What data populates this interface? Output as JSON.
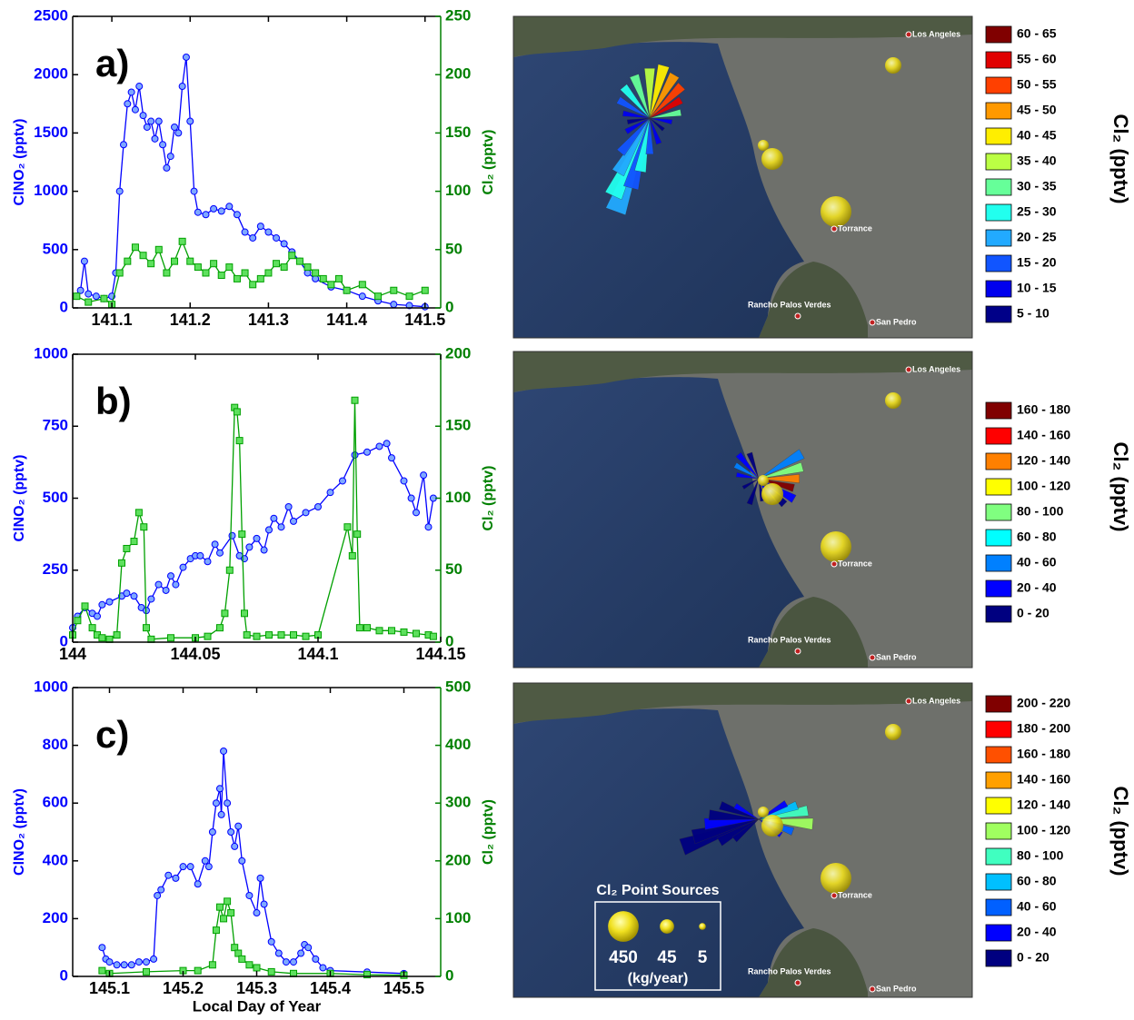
{
  "chart_data": [
    {
      "type": "line",
      "panel_label": "a)",
      "ylabel": "ClNO₂ (pptv)",
      "y2label": "Cl₂ (pptv)",
      "xlim": [
        141.05,
        141.52
      ],
      "xticks": [
        141.1,
        141.2,
        141.3,
        141.4,
        141.5
      ],
      "ylim": [
        0,
        2500
      ],
      "yticks": [
        0,
        500,
        1000,
        1500,
        2000,
        2500
      ],
      "y2lim": [
        0,
        250
      ],
      "y2ticks": [
        0,
        50,
        100,
        150,
        200,
        250
      ],
      "series": [
        {
          "color": "#0000ff",
          "marker": "circle",
          "x": [
            141.055,
            141.06,
            141.065,
            141.07,
            141.08,
            141.09,
            141.1,
            141.105,
            141.11,
            141.115,
            141.12,
            141.125,
            141.13,
            141.135,
            141.14,
            141.145,
            141.15,
            141.155,
            141.16,
            141.165,
            141.17,
            141.175,
            141.18,
            141.185,
            141.19,
            141.195,
            141.2,
            141.205,
            141.21,
            141.22,
            141.23,
            141.24,
            141.25,
            141.26,
            141.27,
            141.28,
            141.29,
            141.3,
            141.31,
            141.32,
            141.33,
            141.34,
            141.35,
            141.36,
            141.38,
            141.4,
            141.42,
            141.44,
            141.46,
            141.48,
            141.5
          ],
          "values": [
            100,
            150,
            400,
            120,
            100,
            80,
            100,
            300,
            1000,
            1400,
            1750,
            1850,
            1700,
            1900,
            1650,
            1550,
            1600,
            1450,
            1600,
            1400,
            1200,
            1300,
            1550,
            1500,
            1900,
            2150,
            1600,
            1000,
            820,
            800,
            850,
            830,
            870,
            800,
            650,
            600,
            700,
            650,
            600,
            550,
            480,
            400,
            300,
            250,
            180,
            150,
            100,
            60,
            30,
            20,
            10
          ]
        },
        {
          "color": "#00a000",
          "marker": "square",
          "axis": "y2",
          "x": [
            141.055,
            141.07,
            141.09,
            141.1,
            141.11,
            141.12,
            141.13,
            141.14,
            141.15,
            141.16,
            141.17,
            141.18,
            141.19,
            141.2,
            141.21,
            141.22,
            141.23,
            141.24,
            141.25,
            141.26,
            141.27,
            141.28,
            141.29,
            141.3,
            141.31,
            141.32,
            141.33,
            141.34,
            141.35,
            141.36,
            141.37,
            141.38,
            141.39,
            141.4,
            141.42,
            141.44,
            141.46,
            141.48,
            141.5
          ],
          "values": [
            10,
            5,
            8,
            3,
            30,
            40,
            52,
            45,
            38,
            50,
            30,
            40,
            57,
            40,
            35,
            30,
            38,
            28,
            35,
            25,
            30,
            20,
            25,
            30,
            38,
            35,
            45,
            40,
            35,
            30,
            25,
            20,
            25,
            15,
            20,
            10,
            15,
            10,
            15
          ]
        }
      ]
    },
    {
      "type": "line",
      "panel_label": "b)",
      "ylabel": "ClNO₂ (pptv)",
      "y2label": "Cl₂ (pptv)",
      "xlim": [
        144,
        144.15
      ],
      "xticks": [
        144,
        144.05,
        144.1,
        144.15
      ],
      "ylim": [
        0,
        1000
      ],
      "yticks": [
        0,
        250,
        500,
        750,
        1000
      ],
      "y2lim": [
        0,
        200
      ],
      "y2ticks": [
        0,
        50,
        100,
        150,
        200
      ],
      "series": [
        {
          "color": "#0000ff",
          "marker": "circle",
          "x": [
            144,
            144.002,
            144.005,
            144.008,
            144.01,
            144.012,
            144.015,
            144.02,
            144.022,
            144.025,
            144.028,
            144.03,
            144.032,
            144.035,
            144.038,
            144.04,
            144.042,
            144.045,
            144.048,
            144.05,
            144.052,
            144.055,
            144.058,
            144.06,
            144.065,
            144.068,
            144.07,
            144.072,
            144.075,
            144.078,
            144.08,
            144.082,
            144.085,
            144.088,
            144.09,
            144.095,
            144.1,
            144.105,
            144.11,
            144.115,
            144.12,
            144.125,
            144.128,
            144.13,
            144.135,
            144.138,
            144.14,
            144.143,
            144.145,
            144.147
          ],
          "values": [
            50,
            90,
            120,
            100,
            90,
            130,
            140,
            160,
            170,
            160,
            120,
            110,
            150,
            200,
            180,
            230,
            200,
            260,
            290,
            300,
            300,
            280,
            340,
            310,
            370,
            300,
            290,
            330,
            360,
            320,
            390,
            430,
            400,
            470,
            420,
            450,
            470,
            520,
            560,
            650,
            660,
            680,
            690,
            640,
            560,
            500,
            450,
            580,
            400,
            500
          ]
        },
        {
          "color": "#00a000",
          "marker": "square",
          "axis": "y2",
          "x": [
            144,
            144.002,
            144.005,
            144.008,
            144.01,
            144.012,
            144.015,
            144.018,
            144.02,
            144.022,
            144.025,
            144.027,
            144.029,
            144.03,
            144.032,
            144.04,
            144.05,
            144.055,
            144.06,
            144.062,
            144.064,
            144.066,
            144.067,
            144.068,
            144.069,
            144.07,
            144.071,
            144.075,
            144.08,
            144.085,
            144.09,
            144.095,
            144.1,
            144.112,
            144.114,
            144.115,
            144.116,
            144.117,
            144.12,
            144.125,
            144.13,
            144.135,
            144.14,
            144.145,
            144.147
          ],
          "values": [
            5,
            15,
            25,
            10,
            5,
            3,
            2,
            5,
            55,
            65,
            70,
            90,
            80,
            10,
            2,
            3,
            3,
            4,
            10,
            20,
            50,
            163,
            160,
            140,
            75,
            20,
            5,
            4,
            5,
            5,
            5,
            4,
            5,
            80,
            60,
            168,
            75,
            10,
            10,
            8,
            8,
            7,
            6,
            5,
            4
          ]
        }
      ]
    },
    {
      "type": "line",
      "panel_label": "c)",
      "ylabel": "ClNO₂ (pptv)",
      "y2label": "Cl₂ (pptv)",
      "xlabel": "Local Day of Year",
      "xlim": [
        145.05,
        145.55
      ],
      "xticks": [
        145.1,
        145.2,
        145.3,
        145.4,
        145.5
      ],
      "ylim": [
        0,
        1000
      ],
      "yticks": [
        0,
        200,
        400,
        600,
        800,
        1000
      ],
      "y2lim": [
        0,
        500
      ],
      "y2ticks": [
        0,
        100,
        200,
        300,
        400,
        500
      ],
      "series": [
        {
          "color": "#0000ff",
          "marker": "circle",
          "x": [
            145.09,
            145.095,
            145.1,
            145.11,
            145.12,
            145.13,
            145.14,
            145.15,
            145.16,
            145.165,
            145.17,
            145.18,
            145.19,
            145.2,
            145.21,
            145.22,
            145.23,
            145.235,
            145.24,
            145.245,
            145.25,
            145.252,
            145.255,
            145.26,
            145.265,
            145.27,
            145.275,
            145.28,
            145.29,
            145.3,
            145.305,
            145.31,
            145.32,
            145.33,
            145.34,
            145.35,
            145.36,
            145.365,
            145.37,
            145.38,
            145.39,
            145.4,
            145.45,
            145.5
          ],
          "values": [
            100,
            60,
            50,
            40,
            40,
            40,
            50,
            50,
            60,
            280,
            300,
            350,
            340,
            380,
            380,
            320,
            400,
            380,
            500,
            600,
            650,
            560,
            780,
            600,
            500,
            450,
            520,
            400,
            280,
            220,
            340,
            250,
            120,
            80,
            50,
            50,
            80,
            110,
            100,
            60,
            30,
            20,
            15,
            10
          ]
        },
        {
          "color": "#00a000",
          "marker": "square",
          "axis": "y2",
          "x": [
            145.09,
            145.1,
            145.15,
            145.2,
            145.22,
            145.24,
            145.245,
            145.25,
            145.255,
            145.26,
            145.265,
            145.27,
            145.275,
            145.28,
            145.29,
            145.3,
            145.32,
            145.35,
            145.4,
            145.45,
            145.5
          ],
          "values": [
            10,
            5,
            8,
            10,
            10,
            20,
            80,
            120,
            100,
            130,
            110,
            50,
            40,
            30,
            20,
            15,
            8,
            5,
            5,
            3,
            2
          ]
        }
      ]
    }
  ],
  "places": [
    "Los Angeles",
    "Torrance",
    "Rancho Palos Verdes",
    "San Pedro"
  ],
  "maps": [
    {
      "legend_title": "Cl₂ (pptv)",
      "bins": [
        {
          "label": "60 - 65",
          "color": "#800000"
        },
        {
          "label": "55 - 60",
          "color": "#e00000"
        },
        {
          "label": "50 - 55",
          "color": "#ff4000"
        },
        {
          "label": "45 - 50",
          "color": "#ff9900"
        },
        {
          "label": "40 - 45",
          "color": "#ffee00"
        },
        {
          "label": "35 - 40",
          "color": "#bbff44"
        },
        {
          "label": "30 - 35",
          "color": "#66ff99"
        },
        {
          "label": "25 - 30",
          "color": "#22ffee"
        },
        {
          "label": "20 - 25",
          "color": "#22aaff"
        },
        {
          "label": "15 - 20",
          "color": "#1155ff"
        },
        {
          "label": "10 - 15",
          "color": "#0000ee"
        },
        {
          "label": "5 - 10",
          "color": "#000088"
        }
      ]
    },
    {
      "legend_title": "Cl₂ (pptv)",
      "bins": [
        {
          "label": "160 - 180",
          "color": "#800000"
        },
        {
          "label": "140 - 160",
          "color": "#ff0000"
        },
        {
          "label": "120 - 140",
          "color": "#ff8000"
        },
        {
          "label": "100 - 120",
          "color": "#ffff00"
        },
        {
          "label": "80 - 100",
          "color": "#80ff80"
        },
        {
          "label": "60 - 80",
          "color": "#00ffff"
        },
        {
          "label": "40 - 60",
          "color": "#0080ff"
        },
        {
          "label": "20 - 40",
          "color": "#0000ff"
        },
        {
          "label": "0 - 20",
          "color": "#000080"
        }
      ]
    },
    {
      "legend_title": "Cl₂ (pptv)",
      "bins": [
        {
          "label": "200 - 220",
          "color": "#800000"
        },
        {
          "label": "180 - 200",
          "color": "#ff0000"
        },
        {
          "label": "160 - 180",
          "color": "#ff5000"
        },
        {
          "label": "140 - 160",
          "color": "#ffa000"
        },
        {
          "label": "120 - 140",
          "color": "#ffff00"
        },
        {
          "label": "100 - 120",
          "color": "#a0ff60"
        },
        {
          "label": "80 - 100",
          "color": "#40ffc0"
        },
        {
          "label": "60 - 80",
          "color": "#00c0ff"
        },
        {
          "label": "40 - 60",
          "color": "#0060ff"
        },
        {
          "label": "20 - 40",
          "color": "#0000ff"
        },
        {
          "label": "0 - 20",
          "color": "#000080"
        }
      ]
    }
  ],
  "point_sources": {
    "title": "Cl₂ Point Sources",
    "values": [
      450,
      45,
      5
    ],
    "unit": "(kg/year)"
  }
}
